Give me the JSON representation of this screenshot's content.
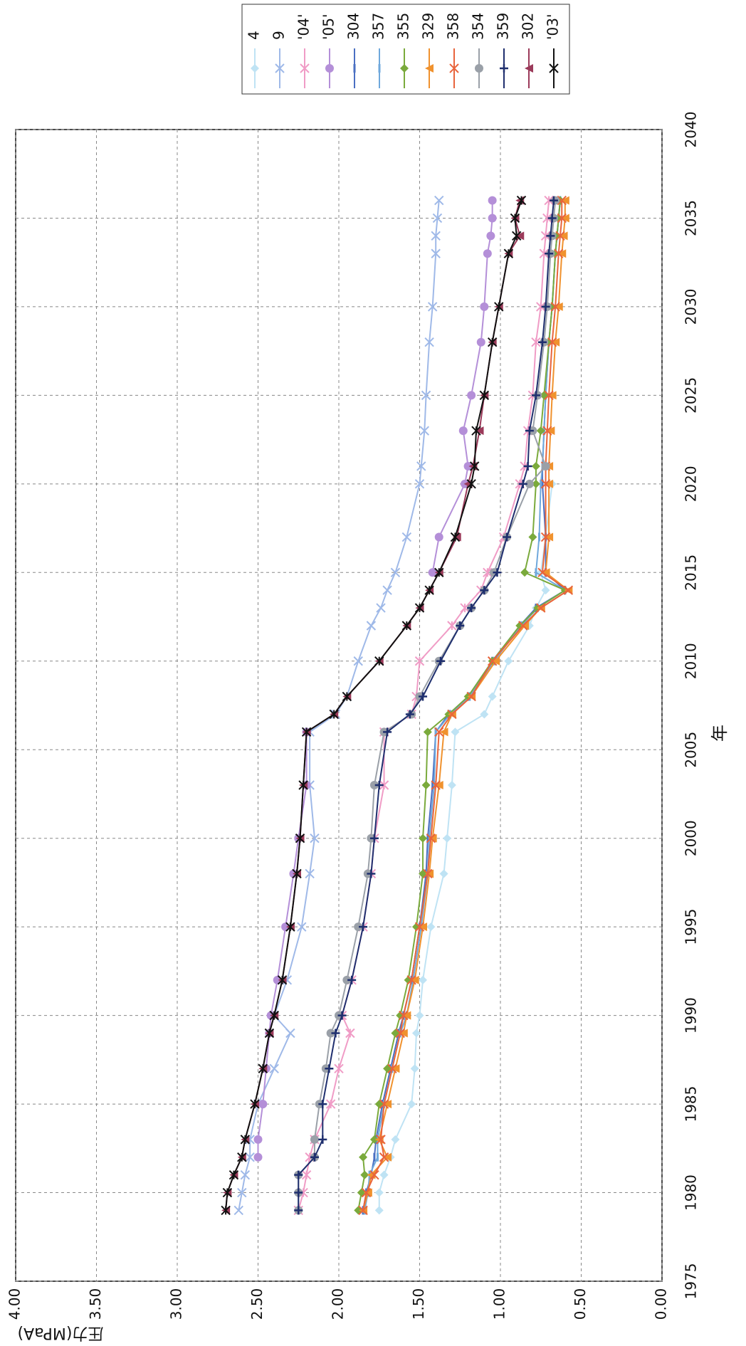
{
  "chart_data": {
    "type": "line",
    "x_label": "年",
    "y_label": "圧力(MPaA)",
    "x": [
      1979,
      1980,
      1981,
      1982,
      1983,
      1985,
      1987,
      1989,
      1990,
      1992,
      1995,
      1998,
      2000,
      2003,
      2006,
      2007,
      2008,
      2010,
      2012,
      2013,
      2014,
      2015,
      2017,
      2020,
      2021,
      2023,
      2025,
      2028,
      2030,
      2033,
      2034,
      2035,
      2036
    ],
    "xlim": [
      1975,
      2040
    ],
    "xticks": [
      1975,
      1980,
      1985,
      1990,
      1995,
      2000,
      2005,
      2010,
      2015,
      2020,
      2025,
      2030,
      2035,
      2040
    ],
    "ylim": [
      0,
      4
    ],
    "yticks": [
      {
        "value": 0,
        "label": "0.00"
      },
      {
        "value": 0.5,
        "label": "0.50"
      },
      {
        "value": 1,
        "label": "1.00"
      },
      {
        "value": 1.5,
        "label": "1.50"
      },
      {
        "value": 2,
        "label": "2.00"
      },
      {
        "value": 2.5,
        "label": "2.50"
      },
      {
        "value": 3,
        "label": "3.00"
      },
      {
        "value": 3.5,
        "label": "3.50"
      },
      {
        "value": 4,
        "label": "4.00"
      }
    ],
    "grid": true,
    "series": [
      {
        "name": "4",
        "color": "#bfe3f4",
        "marker": "diamond",
        "values": [
          1.75,
          1.75,
          1.72,
          1.68,
          1.65,
          1.55,
          1.53,
          1.52,
          1.5,
          1.48,
          1.43,
          1.35,
          1.33,
          1.3,
          1.28,
          1.1,
          1.05,
          0.95,
          0.82,
          0.78,
          0.72,
          0.75,
          0.72,
          0.68,
          null,
          null,
          null,
          null,
          null,
          null,
          null,
          null,
          null
        ]
      },
      {
        "name": "9",
        "color": "#9fb9e8",
        "marker": "x",
        "values": [
          2.62,
          2.6,
          2.58,
          2.55,
          2.55,
          2.5,
          2.4,
          2.3,
          2.4,
          2.32,
          2.23,
          2.18,
          2.15,
          2.18,
          2.18,
          2.02,
          1.95,
          1.88,
          1.8,
          1.74,
          1.7,
          1.65,
          1.58,
          1.5,
          1.49,
          1.47,
          1.46,
          1.44,
          1.42,
          1.4,
          1.4,
          1.39,
          1.38
        ]
      },
      {
        "name": "'04'",
        "color": "#f09cc6",
        "marker": "asterisk",
        "values": [
          2.25,
          2.22,
          2.2,
          2.18,
          2.15,
          2.05,
          2.0,
          1.93,
          1.98,
          1.92,
          1.85,
          1.8,
          1.78,
          1.72,
          1.72,
          1.55,
          1.52,
          1.5,
          1.3,
          1.22,
          1.12,
          1.08,
          0.98,
          0.88,
          0.85,
          0.83,
          0.8,
          0.78,
          0.75,
          0.73,
          0.72,
          0.71,
          0.7
        ]
      },
      {
        "name": "'05'",
        "color": "#b48fd8",
        "marker": "circle",
        "values": [
          null,
          null,
          null,
          2.5,
          2.5,
          2.47,
          2.45,
          2.43,
          2.42,
          2.38,
          2.33,
          2.28,
          2.25,
          2.2,
          2.2,
          null,
          null,
          null,
          null,
          null,
          null,
          1.42,
          1.38,
          1.22,
          1.2,
          1.23,
          1.18,
          1.12,
          1.1,
          1.08,
          1.06,
          1.05,
          1.05
        ]
      },
      {
        "name": "304",
        "color": "#4a6fc2",
        "marker": "dash",
        "values": [
          1.85,
          1.83,
          1.8,
          1.78,
          1.77,
          1.73,
          1.68,
          1.63,
          1.6,
          1.55,
          1.5,
          1.46,
          1.45,
          1.42,
          1.4,
          1.32,
          1.2,
          1.05,
          0.88,
          0.78,
          0.6,
          0.72,
          0.72,
          0.74,
          0.74,
          0.73,
          0.72,
          0.7,
          0.68,
          0.66,
          0.65,
          0.64,
          0.63
        ]
      },
      {
        "name": "357",
        "color": "#6fa8dc",
        "marker": "dash",
        "values": [
          1.84,
          1.82,
          1.81,
          1.76,
          1.76,
          1.72,
          1.67,
          1.62,
          1.58,
          1.54,
          1.49,
          1.45,
          1.44,
          1.41,
          1.4,
          1.31,
          1.19,
          1.04,
          0.87,
          0.77,
          0.6,
          0.78,
          0.76,
          0.75,
          0.74,
          0.73,
          0.72,
          0.7,
          0.68,
          0.66,
          0.65,
          0.64,
          0.63
        ]
      },
      {
        "name": "355",
        "color": "#7aaa3c",
        "marker": "diamond",
        "values": [
          1.88,
          1.86,
          1.84,
          1.85,
          1.78,
          1.75,
          1.7,
          1.65,
          1.62,
          1.57,
          1.52,
          1.48,
          1.48,
          1.46,
          1.45,
          1.32,
          1.2,
          1.05,
          0.88,
          0.77,
          0.6,
          0.85,
          0.8,
          0.78,
          0.78,
          0.75,
          0.73,
          0.7,
          0.68,
          0.66,
          0.65,
          0.64,
          0.63
        ]
      },
      {
        "name": "329",
        "color": "#f0922e",
        "marker": "triangle",
        "values": [
          1.85,
          1.82,
          1.8,
          1.7,
          1.75,
          1.7,
          1.65,
          1.6,
          1.58,
          1.53,
          1.48,
          1.44,
          1.42,
          1.38,
          1.35,
          1.3,
          1.18,
          1.03,
          0.85,
          0.75,
          0.58,
          0.72,
          0.7,
          0.7,
          0.7,
          0.69,
          0.68,
          0.66,
          0.64,
          0.62,
          0.61,
          0.6,
          0.6
        ]
      },
      {
        "name": "358",
        "color": "#e8643c",
        "marker": "x",
        "values": [
          1.85,
          1.83,
          1.78,
          1.72,
          1.74,
          1.72,
          1.67,
          1.62,
          1.6,
          1.55,
          1.5,
          1.45,
          1.43,
          1.4,
          1.38,
          1.3,
          1.18,
          1.05,
          0.86,
          0.75,
          0.58,
          0.74,
          0.72,
          0.72,
          0.72,
          0.71,
          0.7,
          0.68,
          0.66,
          0.64,
          0.63,
          0.62,
          0.62
        ]
      },
      {
        "name": "354",
        "color": "#9aa0a8",
        "marker": "circle",
        "values": [
          2.25,
          2.25,
          2.25,
          2.15,
          2.15,
          2.12,
          2.08,
          2.05,
          2.0,
          1.95,
          1.88,
          1.82,
          1.8,
          1.78,
          1.72,
          1.55,
          1.5,
          1.38,
          1.25,
          1.18,
          1.1,
          1.04,
          0.96,
          0.82,
          0.72,
          0.8,
          0.77,
          0.73,
          0.71,
          0.69,
          0.68,
          0.67,
          0.66
        ]
      },
      {
        "name": "359",
        "color": "#1f2f6e",
        "marker": "plus",
        "values": [
          2.25,
          2.25,
          2.25,
          2.15,
          2.1,
          2.1,
          2.06,
          2.02,
          1.98,
          1.92,
          1.85,
          1.8,
          1.78,
          1.75,
          1.7,
          1.56,
          1.48,
          1.37,
          1.25,
          1.18,
          1.1,
          1.02,
          0.96,
          0.86,
          0.83,
          0.82,
          0.78,
          0.74,
          0.72,
          0.7,
          0.69,
          0.68,
          0.67
        ]
      },
      {
        "name": "302",
        "color": "#9b3a5a",
        "marker": "triangle",
        "values": [
          2.7,
          2.69,
          2.65,
          2.6,
          2.58,
          2.52,
          2.47,
          2.43,
          2.4,
          2.35,
          2.3,
          2.26,
          2.24,
          2.22,
          2.2,
          2.03,
          1.95,
          1.75,
          1.58,
          1.5,
          1.44,
          1.38,
          1.27,
          1.2,
          1.17,
          1.13,
          1.1,
          1.05,
          1.01,
          0.95,
          0.88,
          0.91,
          0.88
        ]
      },
      {
        "name": "'03'",
        "color": "#111111",
        "marker": "asterisk",
        "values": [
          2.7,
          2.69,
          2.65,
          2.6,
          2.58,
          2.52,
          2.47,
          2.43,
          2.4,
          2.35,
          2.3,
          2.26,
          2.24,
          2.22,
          2.2,
          2.03,
          1.95,
          1.75,
          1.58,
          1.5,
          1.44,
          1.38,
          1.28,
          1.18,
          1.16,
          1.15,
          1.1,
          1.05,
          1.01,
          0.95,
          0.9,
          0.91,
          0.87
        ]
      }
    ]
  }
}
